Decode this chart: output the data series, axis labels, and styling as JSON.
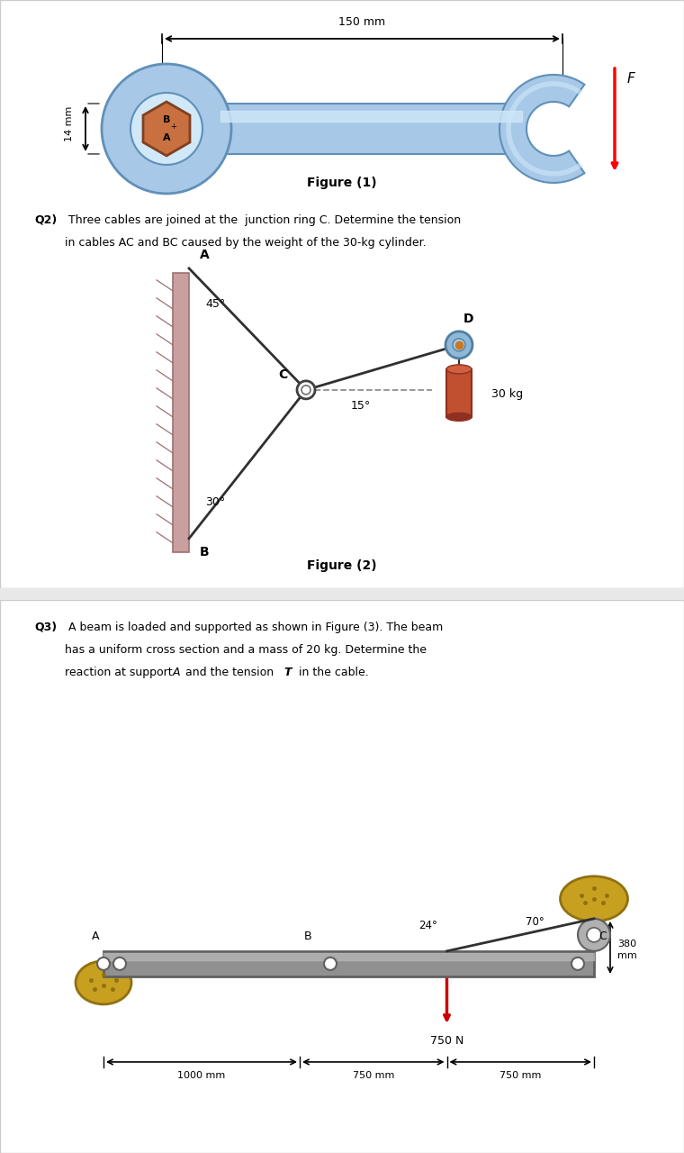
{
  "bg_color": "#e8e8e8",
  "panel_bg": "#ffffff",
  "wrench_blue": "#a8c8e8",
  "wrench_blue_dark": "#6090b8",
  "wrench_blue_light": "#d0e8f8",
  "wrench_hex": "#c87040",
  "wrench_hex_dark": "#804020",
  "wall_color": "#c8a0a0",
  "cable_color": "#303030",
  "dashed_color": "#909090",
  "cylinder_color": "#c05030",
  "cylinder_dark": "#903020",
  "cylinder_light": "#d06040",
  "beam_color": "#909090",
  "beam_dark": "#606060",
  "support_color": "#c8a020",
  "support_dark": "#907010",
  "roller_color": "#b0b0b0",
  "force_color": "#cc0000",
  "fig1_caption": "Figure (1)",
  "fig1_dim_top": "150 mm",
  "fig1_dim_left": "14 mm",
  "fig1_label_F": "F",
  "fig1_label_A": "A",
  "fig1_label_B": "B",
  "q2_bold": "Q2)",
  "q2_text1": " Three cables are joined at the  junction ring C. Determine the tension",
  "q2_text2": "in cables AC and BC caused by the weight of the 30-kg cylinder.",
  "fig2_caption": "Figure (2)",
  "fig2_label_A": "A",
  "fig2_label_B": "B",
  "fig2_label_C": "C",
  "fig2_label_D": "D",
  "fig2_angle_AC": "45°",
  "fig2_angle_BC": "30°",
  "fig2_angle_CD": "15°",
  "fig2_weight": "30 kg",
  "q3_bold": "Q3)",
  "q3_text1": " A beam is loaded and supported as shown in Figure (3). The beam",
  "q3_text2": "has a uniform cross section and a mass of 20 kg. Determine the",
  "q3_text3a": "reaction at support ",
  "q3_text3b": "A",
  "q3_text3c": " and the tension ",
  "q3_text3d": "T",
  "q3_text3e": " in the cable.",
  "fig3_angle_B": "24°",
  "fig3_angle_C": "70°",
  "fig3_dim1": "1000 mm",
  "fig3_dim2": "750 mm",
  "fig3_dim3": "750 mm",
  "fig3_dim4": "380",
  "fig3_dim4b": "mm",
  "fig3_force": "750 N",
  "fig3_label_A": "A",
  "fig3_label_B": "B",
  "fig3_label_C": "C"
}
